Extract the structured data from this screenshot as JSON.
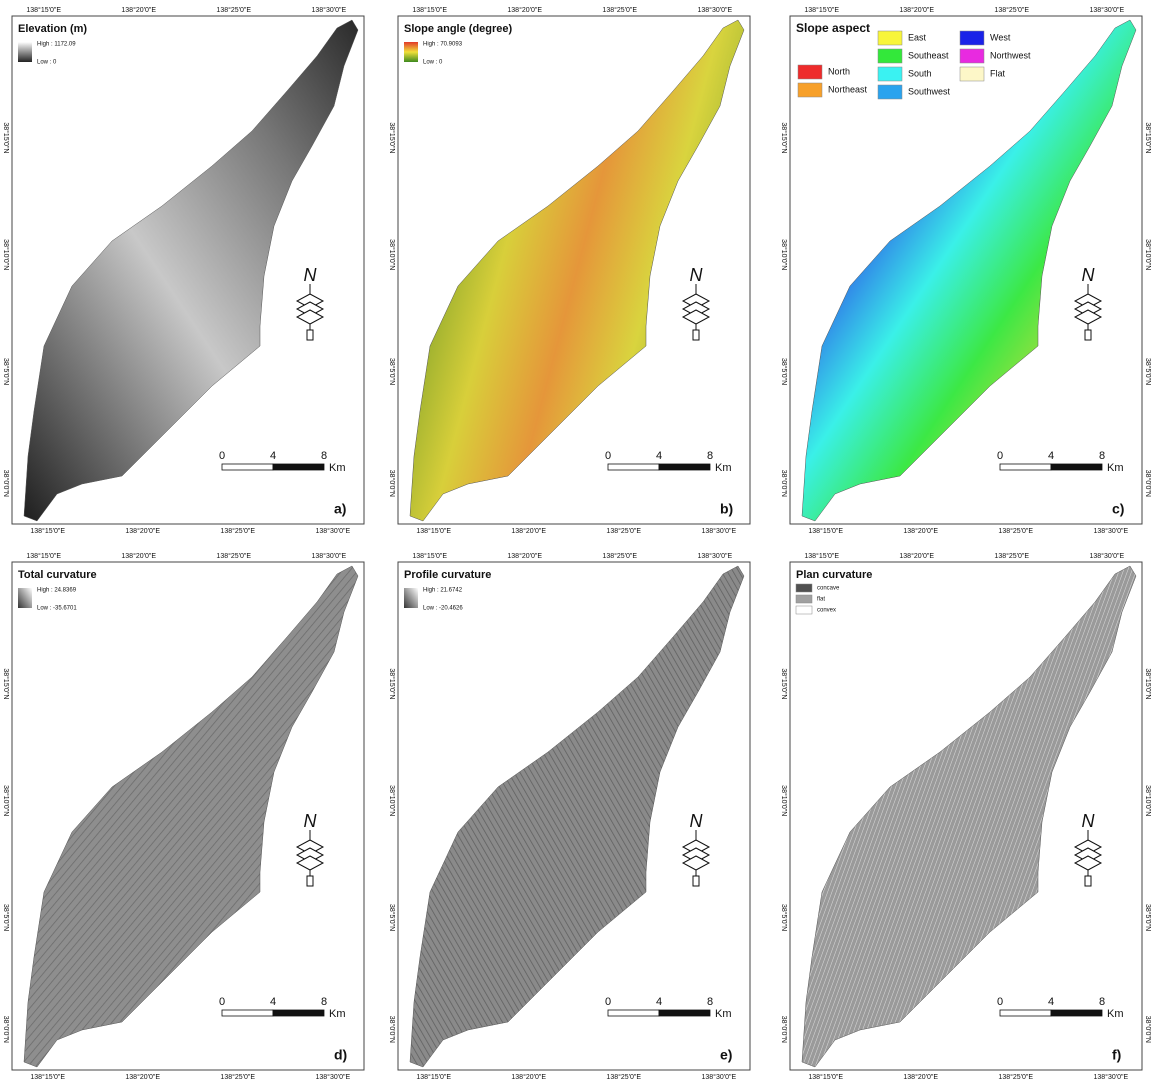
{
  "panels": [
    {
      "label": "a)",
      "title": "Elevation (m)",
      "legend_high": "High : 1172.09",
      "legend_low": "Low : 0",
      "lon_top": [
        "138°15'0\"E",
        "138°20'0\"E",
        "138°25'0\"E",
        "138°30'0\"E"
      ],
      "lon_bottom": [
        "138°15'0\"E",
        "138°20'0\"E",
        "138°25'0\"E",
        "138°30'0\"E"
      ],
      "lat_left": [
        "38°15'0\"N",
        "38°10'0\"N",
        "38°5'0\"N",
        "38°0'0\"N"
      ],
      "north": "N",
      "scale_labels": [
        "0",
        "4",
        "8"
      ],
      "scale_unit": "Km"
    },
    {
      "label": "b)",
      "title": "Slope angle (degree)",
      "legend_high": "High : 70.9093",
      "legend_low": "Low : 0",
      "lon_top": [
        "138°15'0\"E",
        "138°20'0\"E",
        "138°25'0\"E",
        "138°30'0\"E"
      ],
      "lon_bottom": [
        "138°15'0\"E",
        "138°20'0\"E",
        "138°25'0\"E",
        "138°30'0\"E"
      ],
      "lat_left": [
        "38°15'0\"N",
        "38°10'0\"N",
        "38°5'0\"N",
        "38°0'0\"N"
      ],
      "north": "N",
      "scale_labels": [
        "0",
        "4",
        "8"
      ],
      "scale_unit": "Km"
    },
    {
      "label": "c)",
      "title": "Slope aspect",
      "legend_items": [
        {
          "label": "North",
          "color": "#ee2b2b"
        },
        {
          "label": "Northeast",
          "color": "#f7a02a"
        },
        {
          "label": "East",
          "color": "#f8f53a"
        },
        {
          "label": "Southeast",
          "color": "#33e83a"
        },
        {
          "label": "South",
          "color": "#3af2f2"
        },
        {
          "label": "Southwest",
          "color": "#2aa3ee"
        },
        {
          "label": "West",
          "color": "#1a22e8"
        },
        {
          "label": "Northwest",
          "color": "#e82ae0"
        },
        {
          "label": "Flat",
          "color": "#fdf7c8"
        }
      ],
      "lon_top": [
        "138°15'0\"E",
        "138°20'0\"E",
        "138°25'0\"E",
        "138°30'0\"E"
      ],
      "lon_bottom": [
        "138°15'0\"E",
        "138°20'0\"E",
        "138°25'0\"E",
        "138°30'0\"E"
      ],
      "lat_left": [
        "38°15'0\"N",
        "38°10'0\"N",
        "38°5'0\"N",
        "38°0'0\"N"
      ],
      "lat_right": [
        "38°15'0\"N",
        "38°10'0\"N",
        "38°5'0\"N",
        "38°0'0\"N"
      ],
      "north": "N",
      "scale_labels": [
        "0",
        "4",
        "8"
      ],
      "scale_unit": "Km"
    },
    {
      "label": "d)",
      "title": "Total curvature",
      "legend_high": "High : 24.8369",
      "legend_low": "Low : -35.6701",
      "lon_top": [
        "138°15'0\"E",
        "138°20'0\"E",
        "138°25'0\"E",
        "138°30'0\"E"
      ],
      "lon_bottom": [
        "138°15'0\"E",
        "138°20'0\"E",
        "138°25'0\"E",
        "138°30'0\"E"
      ],
      "lat_left": [
        "38°15'0\"N",
        "38°10'0\"N",
        "38°5'0\"N",
        "38°0'0\"N"
      ],
      "north": "N",
      "scale_labels": [
        "0",
        "4",
        "8"
      ],
      "scale_unit": "Km"
    },
    {
      "label": "e)",
      "title": "Profile curvature",
      "legend_high": "High : 21.6742",
      "legend_low": "Low : -20.4626",
      "lon_top": [
        "138°15'0\"E",
        "138°20'0\"E",
        "138°25'0\"E",
        "138°30'0\"E"
      ],
      "lon_bottom": [
        "138°15'0\"E",
        "138°20'0\"E",
        "138°25'0\"E",
        "138°30'0\"E"
      ],
      "lat_left": [
        "38°15'0\"N",
        "38°10'0\"N",
        "38°5'0\"N",
        "38°0'0\"N"
      ],
      "north": "N",
      "scale_labels": [
        "0",
        "4",
        "8"
      ],
      "scale_unit": "Km"
    },
    {
      "label": "f)",
      "title": "Plan curvature",
      "legend_items": [
        {
          "label": "concave",
          "color": "#505050"
        },
        {
          "label": "flat",
          "color": "#a0a0a0"
        },
        {
          "label": "convex",
          "color": "#ffffff"
        }
      ],
      "lon_top": [
        "138°15'0\"E",
        "138°20'0\"E",
        "138°25'0\"E",
        "138°30'0\"E"
      ],
      "lon_bottom": [
        "138°15'0\"E",
        "138°20'0\"E",
        "138°25'0\"E",
        "138°30'0\"E"
      ],
      "lat_left": [
        "38°15'0\"N",
        "38°10'0\"N",
        "38°5'0\"N",
        "38°0'0\"N"
      ],
      "lat_right": [
        "38°15'0\"N",
        "38°10'0\"N",
        "38°5'0\"N",
        "38°0'0\"N"
      ],
      "north": "N",
      "scale_labels": [
        "0",
        "4",
        "8"
      ],
      "scale_unit": "Km"
    }
  ]
}
